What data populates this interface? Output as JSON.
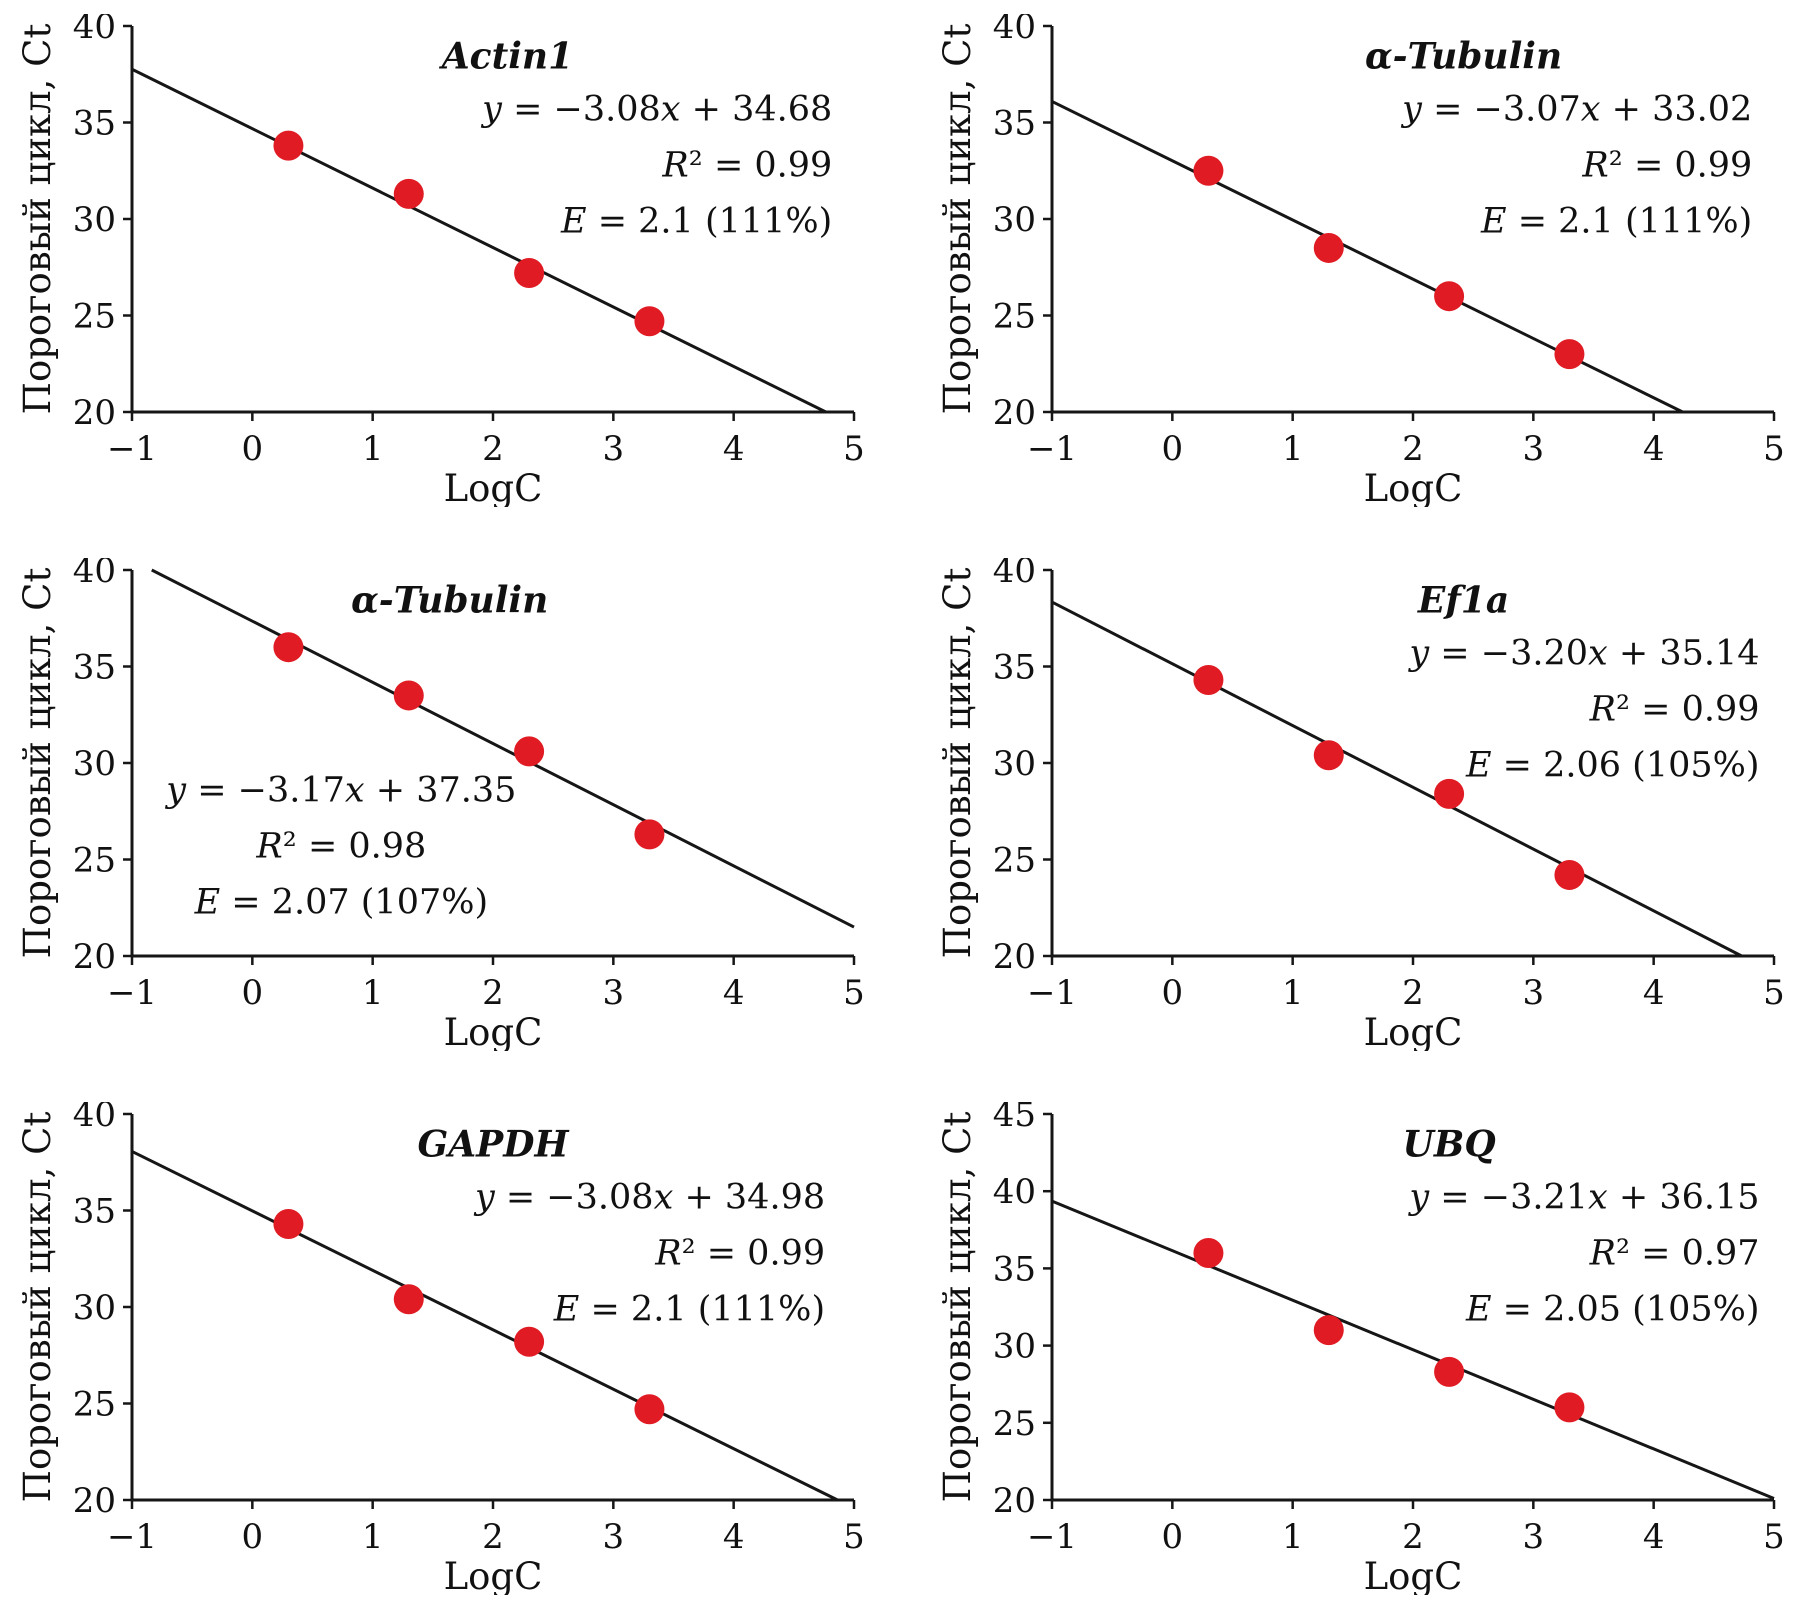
{
  "figure": {
    "shared_ylabel": "Пороговый цикл, Ct",
    "shared_xlabel": "LogC",
    "point_color": "#e01b23",
    "line_color": "#161616",
    "grid": "off",
    "legend": "none"
  },
  "chart_data": [
    {
      "type": "scatter",
      "title": "Actin1",
      "xlabel": "LogC",
      "ylabel": "Пороговый цикл, Ct",
      "xlim": [
        -1,
        5
      ],
      "ylim": [
        20,
        40
      ],
      "xticks": [
        -1,
        0,
        1,
        2,
        3,
        4,
        5
      ],
      "yticks": [
        20,
        25,
        30,
        35,
        40
      ],
      "x": [
        0.3,
        1.3,
        2.3,
        3.3
      ],
      "y": [
        33.8,
        31.3,
        27.2,
        24.7
      ],
      "fit": {
        "slope": -3.08,
        "intercept": 34.68
      },
      "annotations": {
        "equation": "y = −3.08x + 34.68",
        "r_squared": "R² = 0.99",
        "efficiency": "E = 2.1 (111%)"
      },
      "layout": {
        "title_fx": 0.52,
        "title_fy": 0.11,
        "eq_fx": 0.97,
        "eq_fy": 0.245,
        "eq_dy": 0.145,
        "eq_anchor": "end"
      }
    },
    {
      "type": "scatter",
      "title": "α-Tubulin",
      "xlabel": "LogC",
      "ylabel": "Пороговый цикл, Ct",
      "xlim": [
        -1,
        5
      ],
      "ylim": [
        20,
        40
      ],
      "xticks": [
        -1,
        0,
        1,
        2,
        3,
        4,
        5
      ],
      "yticks": [
        20,
        25,
        30,
        35,
        40
      ],
      "x": [
        0.3,
        1.3,
        2.3,
        3.3
      ],
      "y": [
        32.5,
        28.5,
        26.0,
        23.0
      ],
      "fit": {
        "slope": -3.07,
        "intercept": 33.02
      },
      "annotations": {
        "equation": "y = −3.07x + 33.02",
        "r_squared": "R² = 0.99",
        "efficiency": "E = 2.1 (111%)"
      },
      "layout": {
        "title_fx": 0.57,
        "title_fy": 0.11,
        "eq_fx": 0.97,
        "eq_fy": 0.245,
        "eq_dy": 0.145,
        "eq_anchor": "end"
      }
    },
    {
      "type": "scatter",
      "title": "α-Tubulin",
      "xlabel": "LogC",
      "ylabel": "Пороговый цикл, Ct",
      "xlim": [
        -1,
        5
      ],
      "ylim": [
        20,
        40
      ],
      "xticks": [
        -1,
        0,
        1,
        2,
        3,
        4,
        5
      ],
      "yticks": [
        20,
        25,
        30,
        35,
        40
      ],
      "x": [
        0.3,
        1.3,
        2.3,
        3.3
      ],
      "y": [
        36.0,
        33.5,
        30.6,
        26.3
      ],
      "fit": {
        "slope": -3.17,
        "intercept": 37.35
      },
      "annotations": {
        "equation": "y = −3.17x + 37.35",
        "r_squared": "R² = 0.98",
        "efficiency": "E = 2.07 (107%)"
      },
      "layout": {
        "title_fx": 0.44,
        "title_fy": 0.11,
        "eq_fx": 0.29,
        "eq_fy": 0.6,
        "eq_dy": 0.145,
        "eq_anchor": "middle"
      }
    },
    {
      "type": "scatter",
      "title": "Ef1a",
      "xlabel": "LogC",
      "ylabel": "Пороговый цикл, Ct",
      "xlim": [
        -1,
        5
      ],
      "ylim": [
        20,
        40
      ],
      "xticks": [
        -1,
        0,
        1,
        2,
        3,
        4,
        5
      ],
      "yticks": [
        20,
        25,
        30,
        35,
        40
      ],
      "x": [
        0.3,
        1.3,
        2.3,
        3.3
      ],
      "y": [
        34.3,
        30.4,
        28.4,
        24.2
      ],
      "fit": {
        "slope": -3.2,
        "intercept": 35.14
      },
      "annotations": {
        "equation": "y = −3.20x + 35.14",
        "r_squared": "R² = 0.99",
        "efficiency": "E = 2.06 (105%)"
      },
      "layout": {
        "title_fx": 0.57,
        "title_fy": 0.11,
        "eq_fx": 0.98,
        "eq_fy": 0.245,
        "eq_dy": 0.145,
        "eq_anchor": "end"
      }
    },
    {
      "type": "scatter",
      "title": "GAPDH",
      "xlabel": "LogC",
      "ylabel": "Пороговый цикл, Ct",
      "xlim": [
        -1,
        5
      ],
      "ylim": [
        20,
        40
      ],
      "xticks": [
        -1,
        0,
        1,
        2,
        3,
        4,
        5
      ],
      "yticks": [
        20,
        25,
        30,
        35,
        40
      ],
      "x": [
        0.3,
        1.3,
        2.3,
        3.3
      ],
      "y": [
        34.3,
        30.4,
        28.2,
        24.7
      ],
      "fit": {
        "slope": -3.08,
        "intercept": 34.98
      },
      "annotations": {
        "equation": "y = −3.08x + 34.98",
        "r_squared": "R² = 0.99",
        "efficiency": "E = 2.1 (111%)"
      },
      "layout": {
        "title_fx": 0.5,
        "title_fy": 0.11,
        "eq_fx": 0.96,
        "eq_fy": 0.245,
        "eq_dy": 0.145,
        "eq_anchor": "end"
      }
    },
    {
      "type": "scatter",
      "title": "UBQ",
      "xlabel": "LogC",
      "ylabel": "Пороговый цикл, Ct",
      "xlim": [
        -1,
        5
      ],
      "ylim": [
        20,
        45
      ],
      "xticks": [
        -1,
        0,
        1,
        2,
        3,
        4,
        5
      ],
      "yticks": [
        20,
        25,
        30,
        35,
        40,
        45
      ],
      "x": [
        0.3,
        1.3,
        2.3,
        3.3
      ],
      "y": [
        36.0,
        31.0,
        28.3,
        26.0
      ],
      "fit": {
        "slope": -3.21,
        "intercept": 36.15
      },
      "annotations": {
        "equation": "y = −3.21x + 36.15",
        "r_squared": "R² = 0.97",
        "efficiency": "E = 2.05 (105%)"
      },
      "layout": {
        "title_fx": 0.55,
        "title_fy": 0.11,
        "eq_fx": 0.98,
        "eq_fy": 0.245,
        "eq_dy": 0.145,
        "eq_anchor": "end"
      }
    }
  ]
}
